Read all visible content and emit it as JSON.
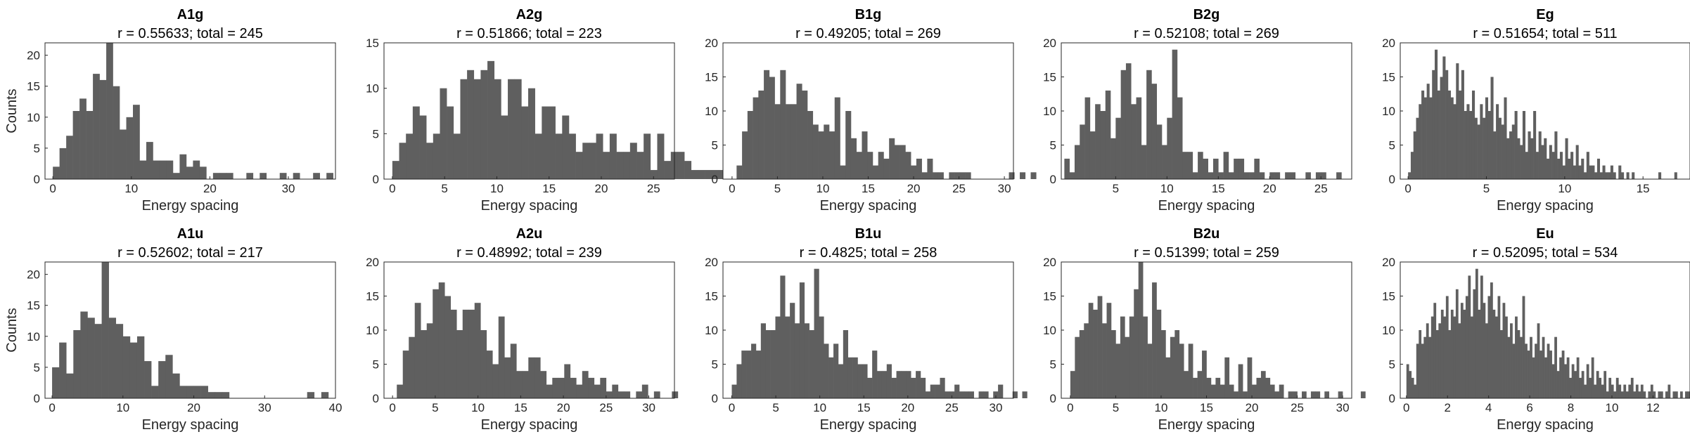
{
  "chart_data": [
    {
      "type": "bar",
      "title": "A1g",
      "subtitle": "r = 0.55633; total = 245",
      "xlabel": "Energy spacing",
      "ylabel": "Counts",
      "xlim": [
        -1,
        36
      ],
      "ylim": [
        0,
        22
      ],
      "xticks": [
        0,
        10,
        20,
        30
      ],
      "yticks": [
        0,
        5,
        10,
        15,
        20
      ],
      "bin_width": 0.85,
      "bin_start": 0,
      "values": [
        2,
        5,
        7,
        11,
        13,
        11,
        17,
        16,
        22,
        15,
        8,
        10,
        12,
        3,
        6,
        3,
        3,
        3,
        1,
        4,
        2,
        3,
        2,
        0,
        1,
        1,
        1,
        0,
        0,
        1,
        0,
        1,
        0,
        0,
        1,
        0,
        1,
        0,
        0,
        1,
        0,
        1
      ]
    },
    {
      "type": "bar",
      "title": "A2g",
      "subtitle": "r = 0.51866; total = 223",
      "xlabel": "Energy spacing",
      "ylabel": "",
      "xlim": [
        -0.8,
        27
      ],
      "ylim": [
        0,
        15
      ],
      "xticks": [
        0,
        5,
        10,
        15,
        20,
        25
      ],
      "yticks": [
        0,
        5,
        10,
        15
      ],
      "bin_width": 0.65,
      "bin_start": 0,
      "values": [
        2,
        4,
        5,
        8,
        7,
        4,
        5,
        10,
        8,
        5,
        11,
        12,
        11,
        12,
        13,
        11,
        7,
        11,
        11,
        8,
        10,
        5,
        8,
        8,
        5,
        7,
        5,
        3,
        4,
        4,
        5,
        3,
        5,
        3,
        3,
        4,
        3,
        5,
        1,
        5,
        2,
        3,
        3,
        2,
        1,
        1,
        1,
        1,
        1,
        1,
        1,
        1,
        2,
        1,
        0,
        0,
        0,
        1
      ]
    },
    {
      "type": "bar",
      "title": "B1g",
      "subtitle": "r = 0.49205; total = 269",
      "xlabel": "Energy spacing",
      "ylabel": "",
      "xlim": [
        -1,
        31
      ],
      "ylim": [
        0,
        20
      ],
      "xticks": [
        0,
        5,
        10,
        15,
        20,
        25,
        30
      ],
      "yticks": [
        0,
        5,
        10,
        15,
        20
      ],
      "bin_width": 0.6,
      "bin_start": 0.5,
      "values": [
        2,
        7,
        10,
        12,
        13,
        16,
        15,
        11,
        16,
        11,
        11,
        14,
        13,
        10,
        8,
        7,
        8,
        7,
        12,
        2,
        10,
        6,
        4,
        7,
        4,
        2,
        4,
        3,
        6,
        5,
        5,
        4,
        2,
        3,
        1,
        3,
        1,
        1,
        0,
        1,
        1,
        1,
        1,
        0,
        0,
        0,
        0,
        0,
        0,
        0,
        1,
        0,
        1,
        0,
        1,
        0,
        0,
        0,
        0,
        0,
        1
      ]
    },
    {
      "type": "bar",
      "title": "B2g",
      "subtitle": "r = 0.52108; total = 269",
      "xlabel": "Energy spacing",
      "ylabel": "",
      "xlim": [
        -0.3,
        28
      ],
      "ylim": [
        0,
        20
      ],
      "xticks": [
        5,
        10,
        15,
        20,
        25
      ],
      "yticks": [
        0,
        5,
        10,
        15,
        20
      ],
      "bin_width": 0.5,
      "bin_start": 0,
      "values": [
        3,
        1,
        5,
        8,
        12,
        7,
        11,
        10,
        13,
        6,
        9,
        16,
        17,
        11,
        12,
        5,
        16,
        14,
        8,
        5,
        9,
        19,
        12,
        4,
        4,
        1,
        4,
        3,
        1,
        3,
        1,
        4,
        1,
        3,
        3,
        1,
        1,
        3,
        1,
        0,
        1,
        1,
        0,
        1,
        1,
        0,
        0,
        1,
        0,
        1,
        1,
        0,
        0,
        1
      ]
    },
    {
      "type": "bar",
      "title": "Eg",
      "subtitle": "r = 0.51654; total = 511",
      "xlabel": "Energy spacing",
      "ylabel": "",
      "xlim": [
        -0.5,
        18
      ],
      "ylim": [
        0,
        20
      ],
      "xticks": [
        0,
        5,
        10,
        15
      ],
      "yticks": [
        0,
        5,
        10,
        15,
        20
      ],
      "bin_width": 0.17,
      "bin_start": 0,
      "values": [
        1,
        4,
        7,
        9,
        11,
        13,
        12,
        14,
        12,
        16,
        19,
        13,
        15,
        18,
        16,
        13,
        12,
        11,
        17,
        13,
        16,
        10,
        11,
        10,
        13,
        9,
        8,
        11,
        9,
        12,
        10,
        15,
        7,
        11,
        9,
        8,
        12,
        6,
        7,
        8,
        10,
        6,
        5,
        10,
        4,
        7,
        6,
        10,
        4,
        7,
        5,
        6,
        3,
        5,
        4,
        7,
        3,
        4,
        2,
        6,
        3,
        4,
        2,
        5,
        2,
        3,
        1,
        4,
        2,
        2,
        1,
        3,
        1,
        2,
        1,
        1,
        2,
        1,
        0,
        2,
        1,
        0,
        1,
        0,
        1,
        0,
        0,
        0,
        0,
        0,
        0,
        0,
        0,
        0,
        1,
        0,
        0,
        0,
        0,
        0,
        1
      ]
    },
    {
      "type": "bar",
      "title": "A1u",
      "subtitle": "r = 0.52602; total = 217",
      "xlabel": "Energy spacing",
      "ylabel": "Counts",
      "xlim": [
        -1,
        40
      ],
      "ylim": [
        0,
        22
      ],
      "xticks": [
        0,
        10,
        20,
        30,
        40
      ],
      "yticks": [
        0,
        5,
        10,
        15,
        20
      ],
      "bin_width": 1.0,
      "bin_start": 0,
      "values": [
        5,
        9,
        4,
        11,
        14,
        13,
        12,
        22,
        13,
        12,
        10,
        9,
        10,
        6,
        2,
        6,
        7,
        4,
        2,
        2,
        2,
        2,
        1,
        1,
        1,
        0,
        0,
        0,
        0,
        0,
        0,
        0,
        0,
        0,
        0,
        0,
        1,
        0,
        1
      ]
    },
    {
      "type": "bar",
      "title": "A2u",
      "subtitle": "r = 0.48992; total = 239",
      "xlabel": "Energy spacing",
      "ylabel": "",
      "xlim": [
        -1,
        33
      ],
      "ylim": [
        0,
        20
      ],
      "xticks": [
        0,
        5,
        10,
        15,
        20,
        25,
        30
      ],
      "yticks": [
        0,
        5,
        10,
        15,
        20
      ],
      "bin_width": 0.7,
      "bin_start": 0.5,
      "values": [
        2,
        7,
        9,
        14,
        10,
        11,
        16,
        17,
        15,
        13,
        10,
        13,
        13,
        14,
        10,
        7,
        5,
        12,
        6,
        8,
        4,
        4,
        6,
        6,
        4,
        2,
        3,
        3,
        5,
        3,
        2,
        4,
        3,
        2,
        3,
        1,
        2,
        1,
        1,
        0,
        1,
        2,
        0,
        1,
        0,
        0,
        1
      ]
    },
    {
      "type": "bar",
      "title": "B1u",
      "subtitle": "r = 0.4825; total = 258",
      "xlabel": "Energy spacing",
      "ylabel": "",
      "xlim": [
        -1,
        32
      ],
      "ylim": [
        0,
        20
      ],
      "xticks": [
        0,
        5,
        10,
        15,
        20,
        25,
        30
      ],
      "yticks": [
        0,
        5,
        10,
        15,
        20
      ],
      "bin_width": 0.55,
      "bin_start": 0,
      "values": [
        2,
        5,
        7,
        7,
        8,
        7,
        11,
        10,
        10,
        12,
        18,
        12,
        14,
        11,
        17,
        11,
        10,
        19,
        12,
        8,
        6,
        8,
        5,
        10,
        6,
        6,
        5,
        5,
        3,
        7,
        4,
        4,
        5,
        3,
        4,
        4,
        4,
        3,
        4,
        3,
        1,
        2,
        2,
        3,
        1,
        1,
        2,
        1,
        1,
        1,
        0,
        1,
        1,
        0,
        1,
        2,
        0,
        0,
        1,
        0,
        1
      ]
    },
    {
      "type": "bar",
      "title": "B2u",
      "subtitle": "r = 0.51399; total = 259",
      "xlabel": "Energy spacing",
      "ylabel": "",
      "xlim": [
        -1,
        31
      ],
      "ylim": [
        0,
        20
      ],
      "xticks": [
        0,
        5,
        10,
        15,
        20,
        25,
        30
      ],
      "yticks": [
        0,
        5,
        10,
        15,
        20
      ],
      "bin_width": 0.5,
      "bin_start": 0,
      "values": [
        4,
        9,
        10,
        11,
        14,
        13,
        15,
        11,
        14,
        10,
        8,
        12,
        9,
        12,
        16,
        20,
        12,
        8,
        17,
        13,
        10,
        6,
        9,
        10,
        8,
        4,
        8,
        3,
        4,
        7,
        3,
        2,
        3,
        2,
        6,
        2,
        1,
        5,
        1,
        6,
        2,
        3,
        4,
        3,
        2,
        1,
        2,
        0,
        1,
        1,
        0,
        1,
        0,
        1,
        1,
        0,
        1,
        0,
        0,
        1,
        0,
        0,
        0,
        0,
        1
      ]
    },
    {
      "type": "bar",
      "title": "Eu",
      "subtitle": "r = 0.52095; total = 534",
      "xlabel": "Energy spacing",
      "ylabel": "",
      "xlim": [
        -0.3,
        13.8
      ],
      "ylim": [
        0,
        20
      ],
      "xticks": [
        0,
        2,
        4,
        6,
        8,
        10,
        12
      ],
      "yticks": [
        0,
        5,
        10,
        15,
        20
      ],
      "bin_width": 0.12,
      "bin_start": 0,
      "values": [
        5,
        4,
        3,
        2,
        8,
        10,
        8,
        9,
        11,
        9,
        12,
        14,
        10,
        11,
        13,
        12,
        15,
        10,
        13,
        12,
        16,
        11,
        14,
        13,
        15,
        18,
        12,
        16,
        19,
        13,
        18,
        14,
        11,
        15,
        17,
        13,
        12,
        15,
        10,
        14,
        12,
        9,
        11,
        8,
        12,
        10,
        9,
        15,
        8,
        7,
        9,
        6,
        8,
        11,
        7,
        9,
        6,
        8,
        7,
        5,
        9,
        4,
        6,
        7,
        5,
        6,
        3,
        5,
        4,
        6,
        3,
        4,
        2,
        5,
        3,
        6,
        2,
        4,
        3,
        2,
        4,
        1,
        3,
        2,
        1,
        3,
        2,
        1,
        2,
        1,
        2,
        3,
        1,
        2,
        1,
        2,
        1,
        0,
        1,
        2,
        1,
        0,
        1,
        1,
        0,
        1,
        2,
        0,
        1,
        1,
        0,
        1,
        0,
        1,
        1
      ]
    }
  ]
}
